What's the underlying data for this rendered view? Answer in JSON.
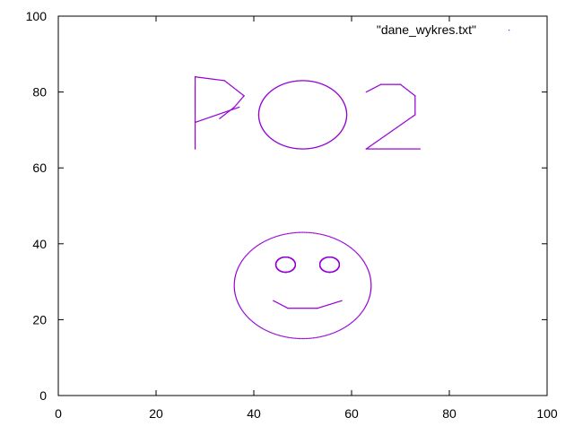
{
  "chart_data": {
    "type": "scatter",
    "title": "",
    "xlabel": "",
    "ylabel": "",
    "xlim": [
      0,
      100
    ],
    "ylim": [
      0,
      100
    ],
    "xticks": [
      0,
      20,
      40,
      60,
      80,
      100
    ],
    "yticks": [
      0,
      20,
      40,
      60,
      80,
      100
    ],
    "grid": false,
    "legend_position": "top-right",
    "series": [
      {
        "name": "\"dane_wykres.txt\"",
        "color": "#9400d3",
        "marker": "dot",
        "segments": [
          [
            [
              28,
              65
            ],
            [
              28,
              84
            ],
            [
              34,
              83
            ],
            [
              38,
              79
            ],
            [
              36,
              76
            ],
            [
              33,
              73
            ]
          ],
          [
            [
              28,
              72
            ],
            [
              37,
              76
            ]
          ],
          "ellipse:50,74,9,9",
          [
            [
              63,
              80
            ],
            [
              66,
              82
            ],
            [
              70,
              82
            ],
            [
              73,
              79
            ],
            [
              73,
              74
            ],
            [
              63,
              65
            ],
            [
              74,
              65
            ]
          ],
          "ellipse:50,29,14,14",
          "ellipse:46.5,34.5,2,2",
          "ellipse:55.5,34.5,2,2",
          [
            [
              44,
              25
            ],
            [
              47,
              23
            ],
            [
              53,
              23
            ],
            [
              58,
              25
            ]
          ]
        ]
      }
    ]
  }
}
